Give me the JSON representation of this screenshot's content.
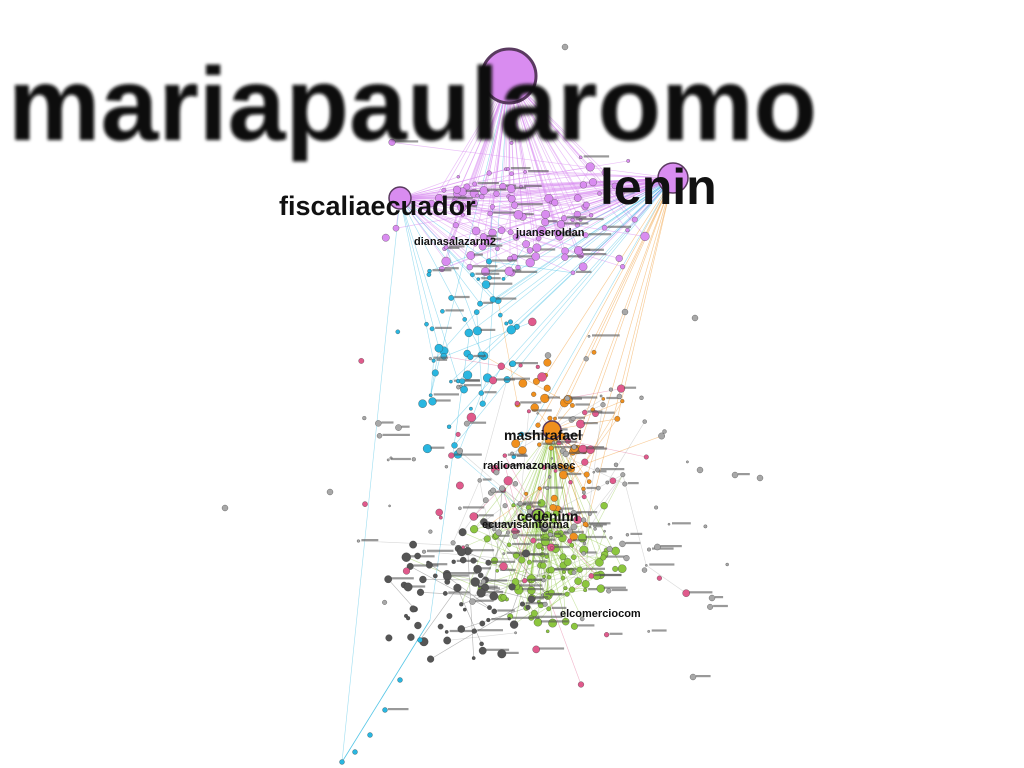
{
  "network": {
    "palette": {
      "purple": "#d98cf0",
      "cyan": "#29b6e0",
      "orange": "#f0901e",
      "green": "#8cc63f",
      "pink": "#e05a8c",
      "gray": "#555555",
      "lightgray": "#a8a8a8"
    },
    "labels": {
      "mariapaularomo": "mariapaularomo",
      "lenin": "lenin",
      "fiscaliaecuador": "fiscaliaecuador",
      "dianasalazarm2": "dianasalazarm2",
      "juanseroldan": "juanseroldan",
      "mashirafael": "mashirafael",
      "radioamazonasec": "radioamazonasec",
      "cedeninn": "cedeninn",
      "ecuavisainforma": "ecuavisainforma",
      "elcomerciocom": "elcomerciocom"
    },
    "hubs": [
      {
        "label_key": "mariapaularomo",
        "color": "purple",
        "size": "xl"
      },
      {
        "label_key": "lenin",
        "color": "purple",
        "size": "l"
      },
      {
        "label_key": "fiscaliaecuador",
        "color": "purple",
        "size": "m"
      },
      {
        "label_key": "mashirafael",
        "color": "orange",
        "size": "m"
      },
      {
        "label_key": "cedeninn",
        "color": "green",
        "size": "s"
      }
    ],
    "clusters": [
      {
        "color": "purple",
        "region": "top"
      },
      {
        "color": "cyan",
        "region": "upper-left"
      },
      {
        "color": "orange",
        "region": "center"
      },
      {
        "color": "green",
        "region": "lower-center"
      },
      {
        "color": "gray",
        "region": "lower-left"
      },
      {
        "color": "pink",
        "region": "scattered"
      }
    ]
  }
}
